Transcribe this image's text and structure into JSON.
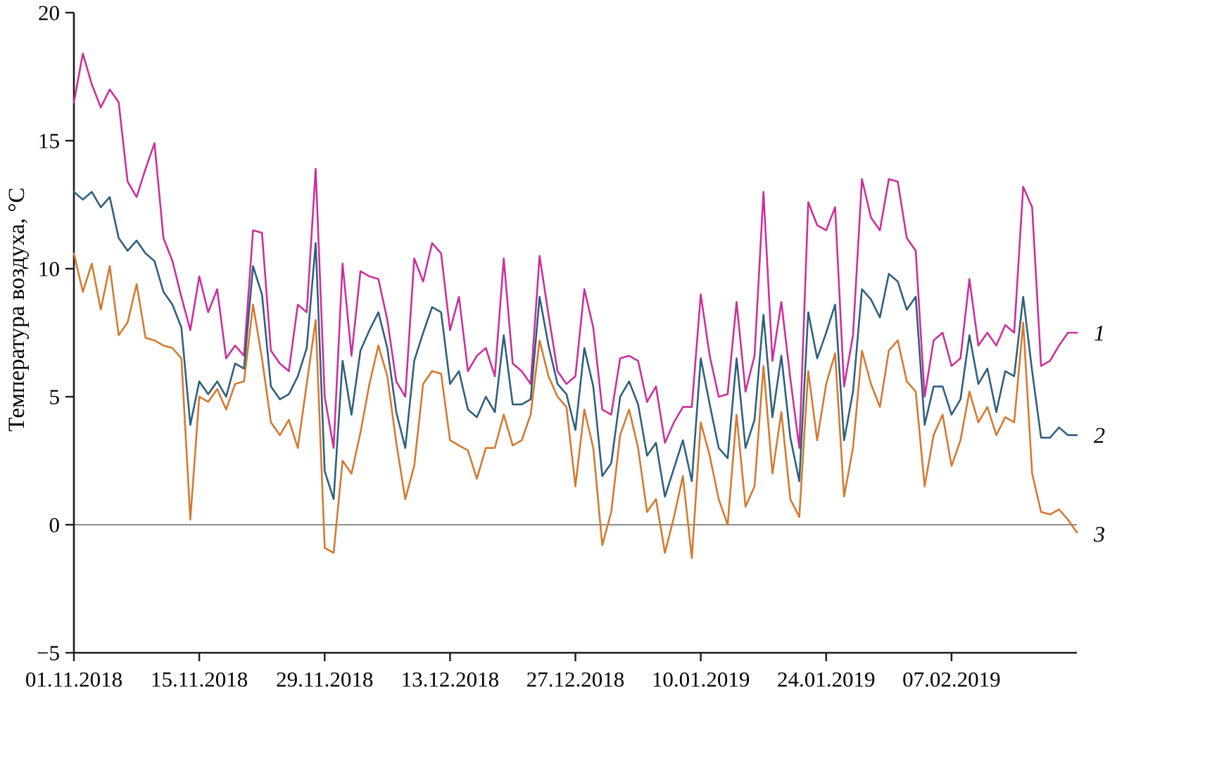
{
  "chart_data": {
    "type": "line",
    "title": "",
    "xlabel": "",
    "ylabel": "Температура воздуха, °C",
    "ylim": [
      -5,
      20
    ],
    "yticks": [
      -5,
      0,
      5,
      10,
      15,
      20
    ],
    "ytick_labels": [
      "−5",
      "0",
      "5",
      "10",
      "15",
      "20"
    ],
    "x_range": [
      0,
      112
    ],
    "xtick_positions": [
      0,
      14,
      28,
      42,
      56,
      70,
      84,
      98
    ],
    "xtick_labels": [
      "01.11.2018",
      "15.11.2018",
      "29.11.2018",
      "13.12.2018",
      "27.12.2018",
      "10.01.2019",
      "24.01.2019",
      "07.02.2019"
    ],
    "grid": false,
    "zero_line": true,
    "zero_line_color": "#4a4a4a",
    "axis_color": "#1a1a1a",
    "legend_position": "right-edge",
    "series": [
      {
        "name": "1",
        "color": "#cb2f9c",
        "values": [
          16.5,
          18.4,
          17.2,
          16.3,
          17.0,
          16.5,
          13.4,
          12.8,
          13.9,
          14.9,
          11.2,
          10.3,
          8.9,
          7.6,
          9.7,
          8.3,
          9.2,
          6.5,
          7.0,
          6.6,
          11.5,
          11.4,
          6.8,
          6.3,
          6.0,
          8.6,
          8.3,
          13.9,
          5.0,
          3.0,
          10.2,
          6.6,
          9.9,
          9.7,
          9.6,
          8.0,
          5.6,
          5.0,
          10.4,
          9.5,
          11.0,
          10.6,
          7.6,
          8.9,
          6.0,
          6.6,
          6.9,
          5.8,
          10.4,
          6.3,
          6.0,
          5.5,
          10.5,
          8.2,
          6.0,
          5.5,
          5.8,
          9.2,
          7.7,
          4.5,
          4.3,
          6.5,
          6.6,
          6.4,
          4.8,
          5.4,
          3.2,
          4.0,
          4.6,
          4.6,
          9.0,
          6.6,
          5.0,
          5.1,
          8.7,
          5.2,
          6.6,
          13.0,
          6.4,
          8.7,
          5.7,
          3.0,
          12.6,
          11.7,
          11.5,
          12.4,
          5.4,
          7.4,
          13.5,
          12.0,
          11.5,
          13.5,
          13.4,
          11.2,
          10.7,
          5.0,
          7.2,
          7.5,
          6.2,
          6.5,
          9.6,
          7.0,
          7.5,
          7.0,
          7.8,
          7.5,
          13.2,
          12.4,
          6.2,
          6.4,
          7.0,
          7.5,
          7.5
        ]
      },
      {
        "name": "2",
        "color": "#2e5f7e",
        "values": [
          13.0,
          12.7,
          13.0,
          12.4,
          12.8,
          11.2,
          10.7,
          11.1,
          10.6,
          10.3,
          9.1,
          8.6,
          7.7,
          3.9,
          5.6,
          5.1,
          5.6,
          5.0,
          6.3,
          6.1,
          10.1,
          9.0,
          5.4,
          4.9,
          5.1,
          5.8,
          6.9,
          11.0,
          2.1,
          1.0,
          6.4,
          4.3,
          6.8,
          7.6,
          8.3,
          6.9,
          4.4,
          3.0,
          6.4,
          7.5,
          8.5,
          8.3,
          5.5,
          6.0,
          4.5,
          4.2,
          5.0,
          4.4,
          7.4,
          4.7,
          4.7,
          4.9,
          8.9,
          7.0,
          5.5,
          5.1,
          3.7,
          6.9,
          5.4,
          1.9,
          2.4,
          5.0,
          5.6,
          4.7,
          2.7,
          3.2,
          1.1,
          2.2,
          3.3,
          1.7,
          6.5,
          4.7,
          3.0,
          2.6,
          6.5,
          3.0,
          4.1,
          8.2,
          4.2,
          6.6,
          3.4,
          1.7,
          8.3,
          6.5,
          7.5,
          8.6,
          3.3,
          5.2,
          9.2,
          8.8,
          8.1,
          9.8,
          9.5,
          8.4,
          8.9,
          3.9,
          5.4,
          5.4,
          4.3,
          4.9,
          7.4,
          5.5,
          6.1,
          4.4,
          6.0,
          5.8,
          8.9,
          6.0,
          3.4,
          3.4,
          3.8,
          3.5,
          3.5
        ]
      },
      {
        "name": "3",
        "color": "#d4792f",
        "values": [
          10.6,
          9.1,
          10.2,
          8.4,
          10.1,
          7.4,
          7.9,
          9.4,
          7.3,
          7.2,
          7.0,
          6.9,
          6.5,
          0.2,
          5.0,
          4.8,
          5.3,
          4.5,
          5.5,
          5.6,
          8.6,
          6.5,
          4.0,
          3.5,
          4.1,
          3.0,
          5.5,
          8.0,
          -0.9,
          -1.1,
          2.5,
          2.0,
          3.6,
          5.5,
          7.0,
          5.8,
          3.2,
          1.0,
          2.3,
          5.5,
          6.0,
          5.9,
          3.3,
          3.1,
          2.9,
          1.8,
          3.0,
          3.0,
          4.3,
          3.1,
          3.3,
          4.3,
          7.2,
          5.8,
          5.0,
          4.6,
          1.5,
          4.5,
          3.0,
          -0.8,
          0.5,
          3.5,
          4.5,
          3.0,
          0.5,
          1.0,
          -1.1,
          0.3,
          1.9,
          -1.3,
          4.0,
          2.7,
          1.0,
          0.0,
          4.3,
          0.7,
          1.5,
          6.2,
          2.0,
          4.4,
          1.0,
          0.3,
          6.0,
          3.3,
          5.5,
          6.7,
          1.1,
          3.0,
          6.8,
          5.5,
          4.6,
          6.8,
          7.2,
          5.6,
          5.2,
          1.5,
          3.5,
          4.3,
          2.3,
          3.3,
          5.2,
          4.0,
          4.6,
          3.5,
          4.2,
          4.0,
          7.9,
          2.0,
          0.5,
          0.4,
          0.6,
          0.2,
          -0.3
        ]
      }
    ]
  }
}
